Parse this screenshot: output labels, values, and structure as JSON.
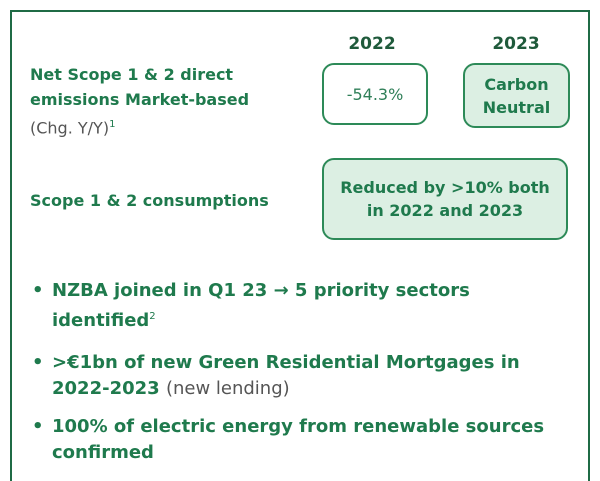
{
  "columns": [
    "2022",
    "2023"
  ],
  "rows": [
    {
      "label": "Net Scope 1 & 2 direct emissions Market-based",
      "note": "(Chg. Y/Y)",
      "footnote": "1",
      "values": [
        "-54.3%",
        "Carbon Neutral"
      ]
    },
    {
      "label": "Scope 1 & 2 consumptions",
      "value": "Reduced by >10% both in 2022 and 2023"
    }
  ],
  "bullets": [
    {
      "text": "NZBA joined in Q1 23 → 5 priority sectors identified",
      "footnote": "2"
    },
    {
      "text": ">€1bn of new Green Residential Mortgages in 2022-2023",
      "note": "(new lending)"
    },
    {
      "text": "100% of electric energy from renewable sources confirmed"
    }
  ]
}
